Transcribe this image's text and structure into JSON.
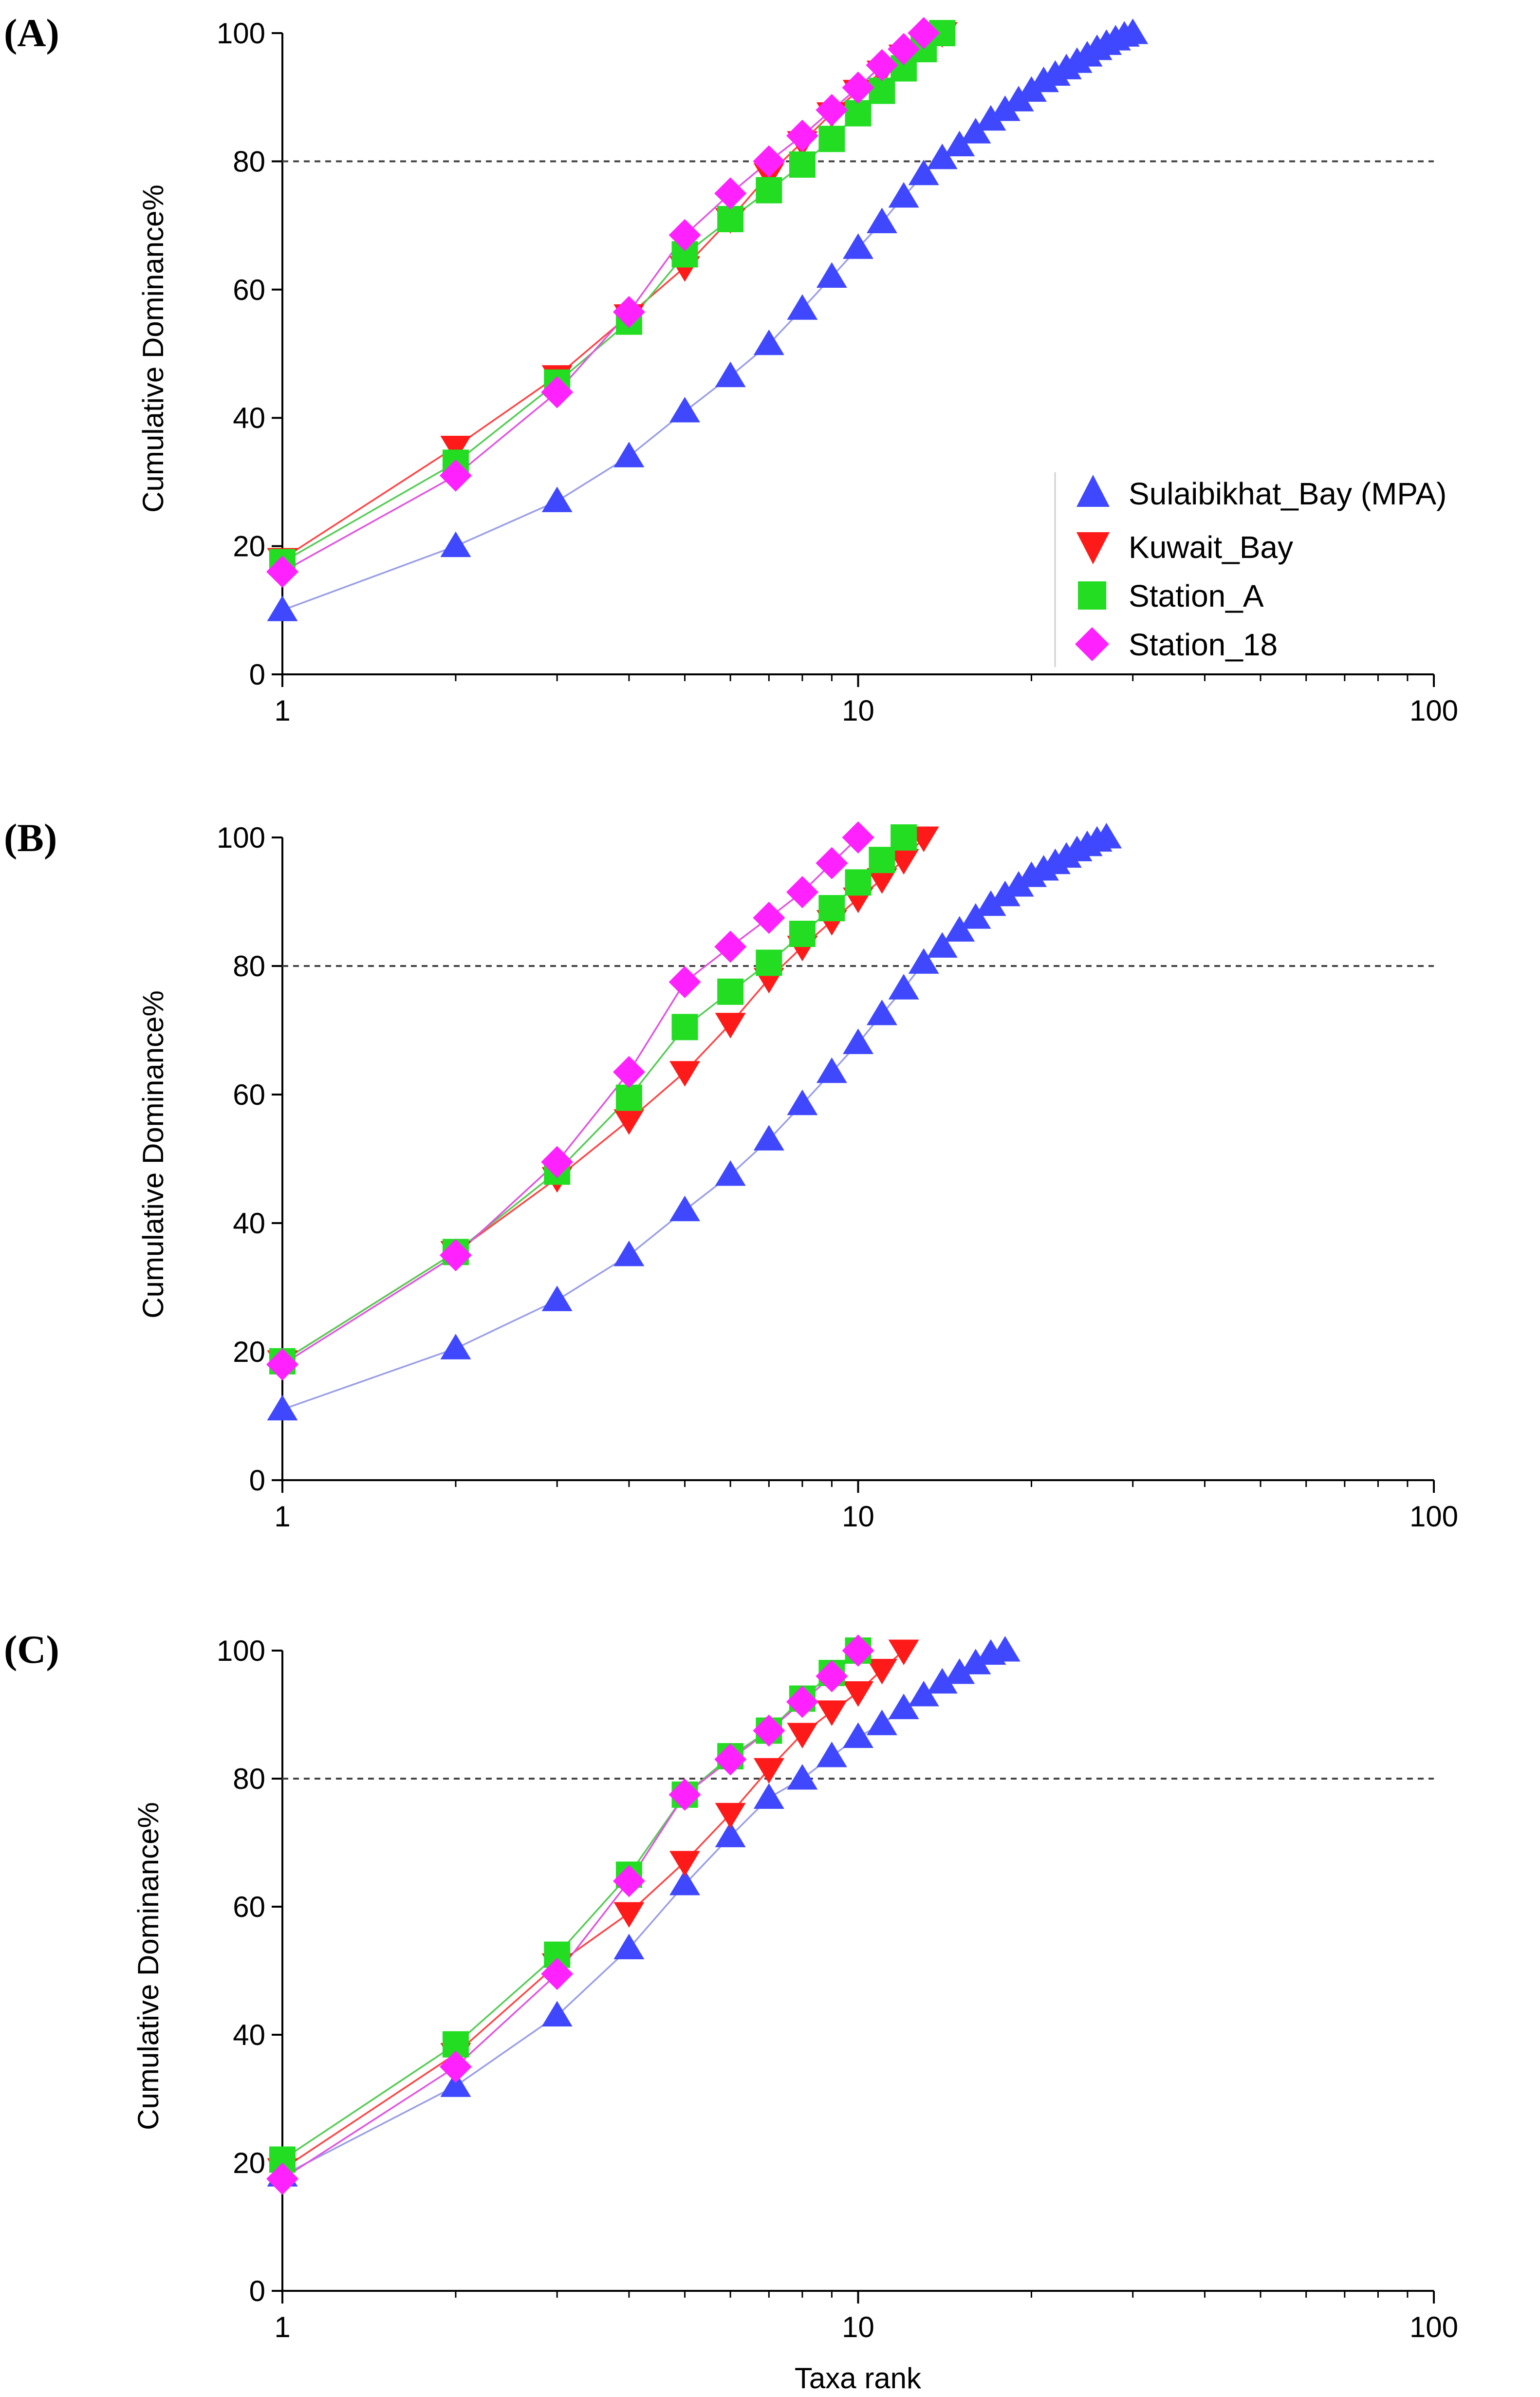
{
  "figure": {
    "y_axis_label": "Cumulative Dominance%",
    "x_axis_label": "Taxa rank",
    "series_colors": {
      "Sulaibikhat_Bay (MPA)": "#3f48ff",
      "Kuwait_Bay": "#ff1a1a",
      "Station_A": "#22dd22",
      "Station_18": "#ff22ff"
    },
    "line_colors": {
      "Sulaibikhat_Bay (MPA)": "#9a9ee8",
      "Kuwait_Bay": "#ff4444",
      "Station_A": "#55cc55",
      "Station_18": "#e055e0"
    }
  },
  "legend": {
    "entries": [
      {
        "label": "Sulaibikhat_Bay (MPA)",
        "marker": "triangle-up"
      },
      {
        "label": "Kuwait_Bay",
        "marker": "triangle-down"
      },
      {
        "label": "Station_A",
        "marker": "square"
      },
      {
        "label": "Station_18",
        "marker": "diamond"
      }
    ],
    "location": "lower-right of panel A"
  },
  "chart_data": [
    {
      "panel": "(A)",
      "type": "line",
      "xscale": "log",
      "xlim": [
        1,
        100
      ],
      "ylim": [
        0,
        100
      ],
      "xticks": [
        "1",
        "10",
        "100"
      ],
      "yticks": [
        "0",
        "20",
        "40",
        "60",
        "80",
        "100"
      ],
      "reference_line_y": 80,
      "series": [
        {
          "name": "Sulaibikhat_Bay (MPA)",
          "marker": "triangle-up",
          "x": [
            1,
            2,
            3,
            4,
            5,
            6,
            7,
            8,
            9,
            10,
            11,
            12,
            13,
            14,
            15,
            16,
            17,
            18,
            19,
            20,
            21,
            22,
            23,
            24,
            25,
            26,
            27,
            28,
            29,
            30
          ],
          "y": [
            10,
            20,
            27,
            34,
            41,
            46.5,
            51.5,
            57,
            62,
            66.5,
            70.5,
            74.5,
            78,
            80.5,
            82.5,
            84.5,
            86.5,
            88,
            89.5,
            91,
            92.5,
            93.5,
            94.5,
            95.5,
            96.5,
            97.5,
            98.3,
            99,
            99.6,
            100
          ]
        },
        {
          "name": "Kuwait_Bay",
          "marker": "triangle-down",
          "x": [
            1,
            2,
            3,
            4,
            5,
            6,
            7,
            8,
            9,
            10,
            11,
            12,
            13,
            14
          ],
          "y": [
            18,
            35.5,
            46.5,
            56,
            63.5,
            71,
            78,
            83,
            87.5,
            91,
            94,
            96.5,
            98.5,
            100
          ]
        },
        {
          "name": "Station_A",
          "marker": "square",
          "x": [
            1,
            2,
            3,
            4,
            5,
            6,
            7,
            8,
            9,
            10,
            11,
            12,
            13,
            14
          ],
          "y": [
            17.5,
            33,
            45.5,
            55,
            65.5,
            71,
            75.5,
            79.5,
            83.5,
            87.5,
            91,
            94.5,
            97.5,
            100
          ]
        },
        {
          "name": "Station_18",
          "marker": "diamond",
          "x": [
            1,
            2,
            3,
            4,
            5,
            6,
            7,
            8,
            9,
            10,
            11,
            12,
            13
          ],
          "y": [
            16,
            31,
            44,
            56.5,
            68.5,
            75,
            80,
            84,
            88,
            91.5,
            95,
            97.5,
            100
          ]
        }
      ]
    },
    {
      "panel": "(B)",
      "type": "line",
      "xscale": "log",
      "xlim": [
        1,
        100
      ],
      "ylim": [
        0,
        100
      ],
      "xticks": [
        "1",
        "10",
        "100"
      ],
      "yticks": [
        "0",
        "20",
        "40",
        "60",
        "80",
        "100"
      ],
      "reference_line_y": 80,
      "series": [
        {
          "name": "Sulaibikhat_Bay (MPA)",
          "marker": "triangle-up",
          "x": [
            1,
            2,
            3,
            4,
            5,
            6,
            7,
            8,
            9,
            10,
            11,
            12,
            13,
            14,
            15,
            16,
            17,
            18,
            19,
            20,
            21,
            22,
            23,
            24,
            25,
            26,
            27
          ],
          "y": [
            11,
            20.5,
            28,
            35,
            42,
            47.5,
            53,
            58.5,
            63.5,
            68,
            72.5,
            76.5,
            80.5,
            83,
            85.5,
            87.5,
            89.5,
            91,
            92.5,
            94,
            95,
            96,
            97,
            98,
            98.8,
            99.5,
            100
          ]
        },
        {
          "name": "Kuwait_Bay",
          "marker": "triangle-down",
          "x": [
            1,
            2,
            3,
            4,
            5,
            6,
            7,
            8,
            9,
            10,
            11,
            12,
            13
          ],
          "y": [
            18.5,
            35.5,
            47,
            56,
            63.5,
            71,
            78,
            83,
            87,
            90.5,
            93.5,
            96.5,
            100
          ]
        },
        {
          "name": "Station_A",
          "marker": "square",
          "x": [
            1,
            2,
            3,
            4,
            5,
            6,
            7,
            8,
            9,
            10,
            11,
            12
          ],
          "y": [
            18.5,
            35.5,
            48,
            59.5,
            70.5,
            76,
            80.5,
            85,
            89,
            93,
            96.5,
            100
          ]
        },
        {
          "name": "Station_18",
          "marker": "diamond",
          "x": [
            1,
            2,
            3,
            4,
            5,
            6,
            7,
            8,
            9,
            10
          ],
          "y": [
            18,
            35,
            49.5,
            63.5,
            77.5,
            83,
            87.5,
            91.5,
            96,
            100
          ]
        }
      ]
    },
    {
      "panel": "(C)",
      "type": "line",
      "xscale": "log",
      "xlim": [
        1,
        100
      ],
      "ylim": [
        0,
        100
      ],
      "xticks": [
        "1",
        "10",
        "100"
      ],
      "yticks": [
        "0",
        "20",
        "40",
        "60",
        "80",
        "100"
      ],
      "reference_line_y": 80,
      "series": [
        {
          "name": "Sulaibikhat_Bay (MPA)",
          "marker": "triangle-up",
          "x": [
            1,
            2,
            3,
            4,
            5,
            6,
            7,
            8,
            9,
            10,
            11,
            12,
            13,
            14,
            15,
            16,
            17,
            18
          ],
          "y": [
            18,
            32,
            43,
            53.5,
            63.5,
            71,
            77,
            80,
            83.5,
            86.5,
            88.5,
            91,
            93,
            95,
            96.5,
            98,
            99.5,
            100
          ]
        },
        {
          "name": "Kuwait_Bay",
          "marker": "triangle-down",
          "x": [
            1,
            2,
            3,
            4,
            5,
            6,
            7,
            8,
            9,
            10,
            11,
            12
          ],
          "y": [
            19,
            37,
            51,
            59,
            67,
            74.5,
            81.5,
            87,
            90.5,
            93.5,
            97,
            100
          ]
        },
        {
          "name": "Station_A",
          "marker": "square",
          "x": [
            1,
            2,
            3,
            4,
            5,
            6,
            7,
            8,
            9,
            10
          ],
          "y": [
            20.5,
            38.5,
            52.5,
            65,
            77.5,
            83.5,
            87.5,
            92.5,
            96.5,
            100
          ]
        },
        {
          "name": "Station_18",
          "marker": "diamond",
          "x": [
            1,
            2,
            3,
            4,
            5,
            6,
            7,
            8,
            9,
            10
          ],
          "y": [
            17.5,
            35,
            49.5,
            64,
            77.5,
            83,
            87.5,
            92,
            96,
            100
          ]
        }
      ]
    }
  ]
}
